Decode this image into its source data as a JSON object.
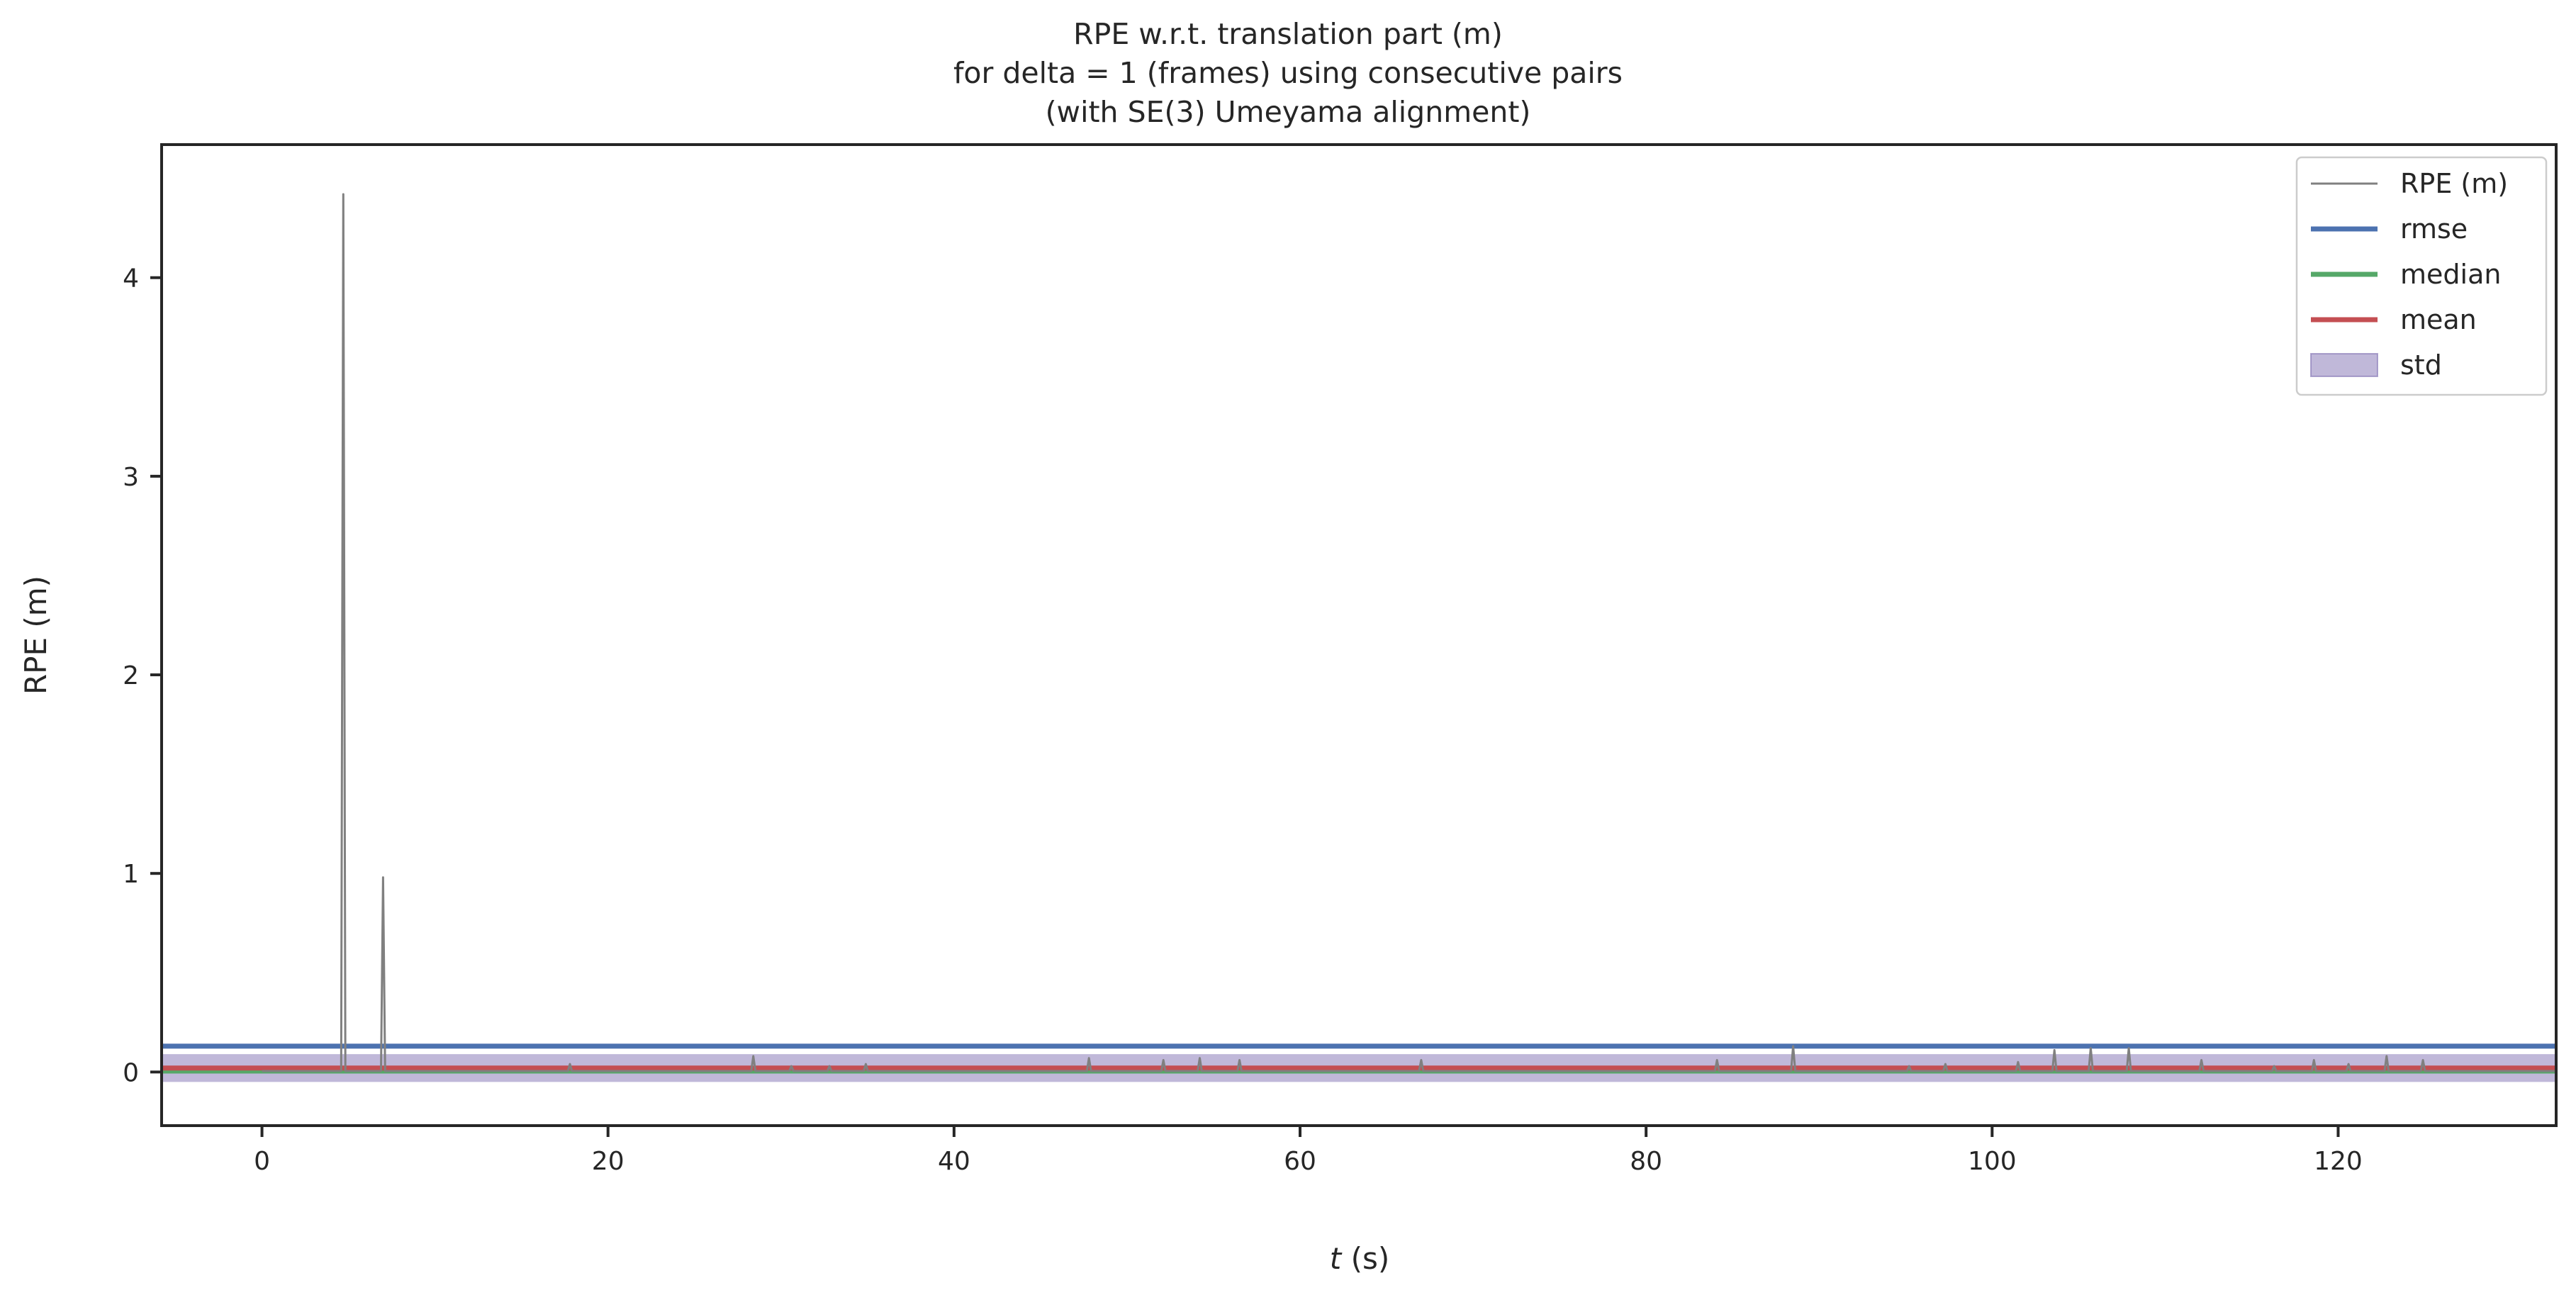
{
  "chart_data": {
    "type": "line",
    "title_lines": [
      "RPE w.r.t. translation part (m)",
      "for delta = 1 (frames) using consecutive pairs",
      "(with SE(3) Umeyama alignment)"
    ],
    "xlabel_italic": "t",
    "xlabel_rest": " (s)",
    "ylabel": "RPE (m)",
    "xlim": [
      -5.8,
      132.6
    ],
    "ylim": [
      -0.27,
      4.67
    ],
    "xticks": [
      0,
      20,
      40,
      60,
      80,
      100,
      120
    ],
    "xtick_labels": [
      "0",
      "20",
      "40",
      "60",
      "80",
      "100",
      "120"
    ],
    "yticks": [
      0,
      1,
      2,
      3,
      4
    ],
    "ytick_labels": [
      "0",
      "1",
      "2",
      "3",
      "4"
    ],
    "grid": false,
    "legend_position": "top-right",
    "legend": [
      {
        "label": "RPE (m)",
        "kind": "thin-line",
        "color": "#808080"
      },
      {
        "label": "rmse",
        "kind": "line",
        "color": "#4c72b0"
      },
      {
        "label": "median",
        "kind": "line",
        "color": "#55a868"
      },
      {
        "label": "mean",
        "kind": "line",
        "color": "#c44e52"
      },
      {
        "label": "std",
        "kind": "patch",
        "color": "#8172b3"
      }
    ],
    "stats": {
      "rmse": 0.13,
      "median": 0.005,
      "mean": 0.02,
      "std_low": -0.05,
      "std_high": 0.09
    },
    "series": [
      {
        "name": "RPE (m)",
        "color": "#808080",
        "baseline": 0.005,
        "spikes": [
          {
            "t": 4.7,
            "v": 4.42
          },
          {
            "t": 7.0,
            "v": 0.98
          },
          {
            "t": 17.8,
            "v": 0.04
          },
          {
            "t": 28.4,
            "v": 0.08
          },
          {
            "t": 30.6,
            "v": 0.03
          },
          {
            "t": 32.8,
            "v": 0.03
          },
          {
            "t": 34.9,
            "v": 0.04
          },
          {
            "t": 47.8,
            "v": 0.07
          },
          {
            "t": 52.1,
            "v": 0.06
          },
          {
            "t": 54.2,
            "v": 0.07
          },
          {
            "t": 56.5,
            "v": 0.06
          },
          {
            "t": 67.0,
            "v": 0.06
          },
          {
            "t": 84.1,
            "v": 0.06
          },
          {
            "t": 88.5,
            "v": 0.13
          },
          {
            "t": 95.2,
            "v": 0.03
          },
          {
            "t": 97.3,
            "v": 0.04
          },
          {
            "t": 101.5,
            "v": 0.05
          },
          {
            "t": 103.6,
            "v": 0.11
          },
          {
            "t": 105.7,
            "v": 0.12
          },
          {
            "t": 107.9,
            "v": 0.12
          },
          {
            "t": 112.1,
            "v": 0.06
          },
          {
            "t": 116.3,
            "v": 0.03
          },
          {
            "t": 118.6,
            "v": 0.06
          },
          {
            "t": 120.6,
            "v": 0.04
          },
          {
            "t": 122.8,
            "v": 0.08
          },
          {
            "t": 124.9,
            "v": 0.06
          }
        ]
      }
    ]
  }
}
